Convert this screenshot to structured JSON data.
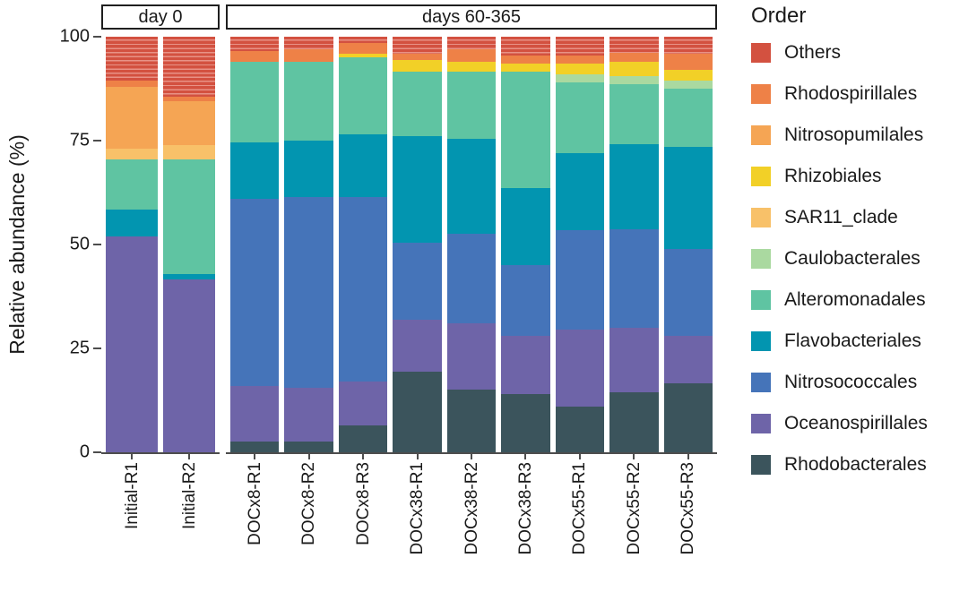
{
  "legend": {
    "title": "Order"
  },
  "chart_data": {
    "type": "bar",
    "stacked": true,
    "title": "",
    "xlabel": "",
    "ylabel": "Relative abundance (%)",
    "ylim": [
      0,
      100
    ],
    "yticks": [
      0,
      25,
      50,
      75,
      100
    ],
    "grid": false,
    "legend_position": "right",
    "orders_legend_top_to_bottom": [
      {
        "name": "Others",
        "color": "#d35140",
        "stripe": "#e89286"
      },
      {
        "name": "Rhodospirillales",
        "color": "#ee8147"
      },
      {
        "name": "Nitrosopumilales",
        "color": "#f5a554"
      },
      {
        "name": "Rhizobiales",
        "color": "#f2d027"
      },
      {
        "name": "SAR11_clade",
        "color": "#f8c169"
      },
      {
        "name": "Caulobacterales",
        "color": "#aad9a0"
      },
      {
        "name": "Alteromonadales",
        "color": "#5fc4a2"
      },
      {
        "name": "Flavobacteriales",
        "color": "#0295b0"
      },
      {
        "name": "Nitrosococcales",
        "color": "#4574b9"
      },
      {
        "name": "Oceanospirillales",
        "color": "#6e64a8"
      },
      {
        "name": "Rhodobacterales",
        "color": "#3b545c"
      }
    ],
    "stack_order_bottom_to_top": [
      "Rhodobacterales",
      "Oceanospirillales",
      "Nitrosococcales",
      "Flavobacteriales",
      "Alteromonadales",
      "Caulobacterales",
      "SAR11_clade",
      "Rhizobiales",
      "Nitrosopumilales",
      "Rhodospirillales",
      "Others"
    ],
    "panels": [
      {
        "title": "day 0",
        "bars": [
          {
            "label": "Initial-R1",
            "values": [
              0,
              52,
              0,
              6.5,
              12,
              0,
              2.5,
              0,
              15,
              1.5,
              10.5
            ]
          },
          {
            "label": "Initial-R2",
            "values": [
              0,
              41.5,
              0,
              1.5,
              27.5,
              0,
              3.5,
              0,
              10.5,
              1,
              14.5
            ]
          }
        ]
      },
      {
        "title": "days 60-365",
        "bars": [
          {
            "label": "DOCx8-R1",
            "values": [
              2.5,
              13.5,
              45,
              13.5,
              19.5,
              0,
              0,
              0,
              0,
              2.5,
              3.5
            ]
          },
          {
            "label": "DOCx8-R2",
            "values": [
              2.5,
              13,
              46,
              13.5,
              19,
              0,
              0,
              0,
              0,
              3,
              3
            ]
          },
          {
            "label": "DOCx8-R3",
            "values": [
              6.5,
              10.5,
              44.5,
              15,
              18.5,
              0,
              0,
              1,
              0,
              2.5,
              1.5
            ]
          },
          {
            "label": "DOCx38-R1",
            "values": [
              19.5,
              12.5,
              18.5,
              25.5,
              15.5,
              0,
              0,
              3,
              0,
              1.5,
              4
            ]
          },
          {
            "label": "DOCx38-R2",
            "values": [
              15,
              16,
              21.5,
              23,
              16,
              0,
              0,
              2.5,
              0,
              3,
              3
            ]
          },
          {
            "label": "DOCx38-R3",
            "values": [
              14,
              14,
              17,
              18.5,
              28,
              0,
              0,
              2,
              0,
              2,
              4.5
            ]
          },
          {
            "label": "DOCx55-R1",
            "values": [
              11,
              18.5,
              24,
              18.5,
              17,
              2,
              0,
              2.5,
              0,
              2,
              4.5
            ]
          },
          {
            "label": "DOCx55-R2",
            "values": [
              14.5,
              15.5,
              24,
              20.5,
              14.5,
              2,
              0,
              3.5,
              0,
              2,
              4
            ]
          },
          {
            "label": "DOCx55-R3",
            "values": [
              16.5,
              11.5,
              21,
              24.5,
              14,
              2,
              0,
              2.5,
              0,
              4,
              4
            ]
          }
        ]
      }
    ]
  }
}
